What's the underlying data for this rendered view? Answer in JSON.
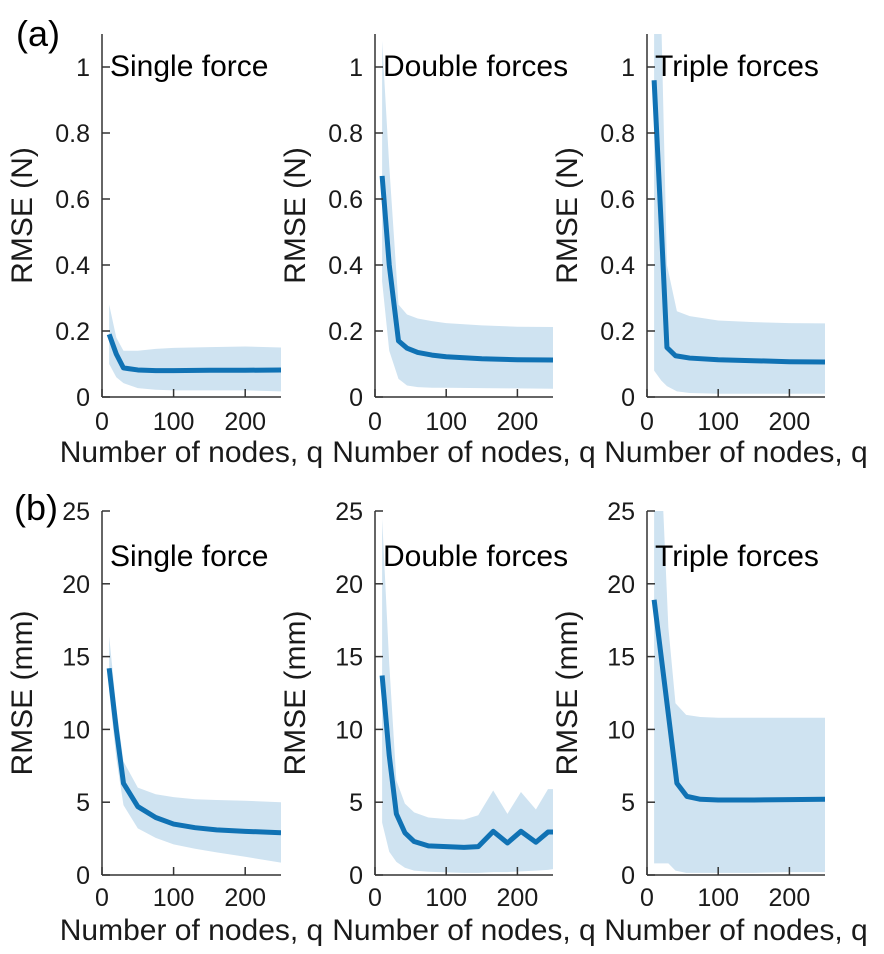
{
  "figure": {
    "panels": [
      {
        "label": "(a)"
      },
      {
        "label": "(b)"
      }
    ],
    "colors": {
      "line": "#1072b4",
      "band": "#cfe3f1",
      "axis": "#333333",
      "text": "#1a1a1a"
    }
  },
  "chart_data": [
    {
      "id": "a-single-force",
      "type": "line",
      "panel": "a",
      "title": "Single force",
      "xlabel": "Number of nodes, q",
      "ylabel": "RMSE (N)",
      "xlim": [
        0,
        250
      ],
      "ylim": [
        0,
        1.1
      ],
      "xticks": [
        0,
        100,
        200
      ],
      "yticks": [
        0,
        0.2,
        0.4,
        0.6,
        0.8,
        1
      ],
      "grid": false,
      "legend": null,
      "series": [
        {
          "name": "mean RMSE",
          "x": [
            10,
            20,
            30,
            50,
            75,
            100,
            150,
            200,
            250
          ],
          "y": [
            0.19,
            0.13,
            0.088,
            0.082,
            0.08,
            0.08,
            0.081,
            0.081,
            0.082
          ]
        }
      ],
      "band": {
        "name": "uncertainty band",
        "x": [
          10,
          20,
          30,
          50,
          75,
          100,
          150,
          200,
          250
        ],
        "upper": [
          0.28,
          0.18,
          0.14,
          0.14,
          0.146,
          0.149,
          0.151,
          0.153,
          0.15
        ],
        "lower": [
          0.1,
          0.06,
          0.042,
          0.027,
          0.022,
          0.02,
          0.02,
          0.02,
          0.017
        ]
      }
    },
    {
      "id": "a-double-forces",
      "type": "line",
      "panel": "a",
      "title": "Double forces",
      "xlabel": "Number of nodes, q",
      "ylabel": "RMSE (N)",
      "xlim": [
        0,
        250
      ],
      "ylim": [
        0,
        1.1
      ],
      "xticks": [
        0,
        100,
        200
      ],
      "yticks": [
        0,
        0.2,
        0.4,
        0.6,
        0.8,
        1
      ],
      "grid": false,
      "legend": null,
      "series": [
        {
          "name": "mean RMSE",
          "x": [
            10,
            20,
            33,
            45,
            60,
            80,
            100,
            150,
            200,
            250
          ],
          "y": [
            0.67,
            0.4,
            0.17,
            0.148,
            0.135,
            0.127,
            0.122,
            0.116,
            0.113,
            0.112
          ]
        }
      ],
      "band": {
        "name": "uncertainty band",
        "x": [
          10,
          20,
          33,
          45,
          60,
          80,
          100,
          150,
          200,
          250
        ],
        "upper": [
          1.08,
          0.7,
          0.28,
          0.25,
          0.238,
          0.23,
          0.224,
          0.217,
          0.213,
          0.212
        ],
        "lower": [
          0.35,
          0.14,
          0.055,
          0.035,
          0.03,
          0.028,
          0.028,
          0.027,
          0.026,
          0.025
        ]
      }
    },
    {
      "id": "a-triple-forces",
      "type": "line",
      "panel": "a",
      "title": "Triple forces",
      "xlabel": "Number of nodes, q",
      "ylabel": "RMSE (N)",
      "xlim": [
        0,
        250
      ],
      "ylim": [
        0,
        1.1
      ],
      "xticks": [
        0,
        100,
        200
      ],
      "yticks": [
        0,
        0.2,
        0.4,
        0.6,
        0.8,
        1
      ],
      "grid": false,
      "legend": null,
      "series": [
        {
          "name": "mean RMSE",
          "x": [
            10,
            20,
            28,
            40,
            60,
            100,
            150,
            200,
            250
          ],
          "y": [
            0.96,
            0.52,
            0.15,
            0.125,
            0.118,
            0.113,
            0.11,
            0.107,
            0.106
          ]
        }
      ],
      "band": {
        "name": "uncertainty band",
        "x": [
          10,
          20,
          28,
          42,
          60,
          100,
          150,
          200,
          250
        ],
        "upper": [
          1.15,
          1.15,
          0.4,
          0.26,
          0.245,
          0.232,
          0.227,
          0.224,
          0.223
        ],
        "lower": [
          0.08,
          0.05,
          0.033,
          0.017,
          0.012,
          0.01,
          0.01,
          0.01,
          0.01
        ]
      }
    },
    {
      "id": "b-single-force",
      "type": "line",
      "panel": "b",
      "title": "Single force",
      "xlabel": "Number of nodes, q",
      "ylabel": "RMSE (mm)",
      "xlim": [
        0,
        250
      ],
      "ylim": [
        0,
        25
      ],
      "xticks": [
        0,
        100,
        200
      ],
      "yticks": [
        0,
        5,
        10,
        15,
        20,
        25
      ],
      "grid": false,
      "legend": null,
      "series": [
        {
          "name": "mean RMSE",
          "x": [
            10,
            20,
            30,
            50,
            75,
            100,
            130,
            160,
            200,
            250
          ],
          "y": [
            14.2,
            10.0,
            6.3,
            4.7,
            3.95,
            3.5,
            3.25,
            3.1,
            3.0,
            2.9
          ]
        }
      ],
      "band": {
        "name": "uncertainty band",
        "x": [
          10,
          20,
          30,
          50,
          75,
          100,
          130,
          160,
          200,
          250
        ],
        "upper": [
          16.4,
          11.5,
          7.8,
          6.0,
          5.55,
          5.35,
          5.2,
          5.15,
          5.1,
          5.0
        ],
        "lower": [
          12.6,
          8.0,
          4.8,
          3.2,
          2.55,
          2.1,
          1.8,
          1.55,
          1.25,
          0.85
        ]
      }
    },
    {
      "id": "b-double-forces",
      "type": "line",
      "panel": "b",
      "title": "Double forces",
      "xlabel": "Number of nodes, q",
      "ylabel": "RMSE (mm)",
      "xlim": [
        0,
        250
      ],
      "ylim": [
        0,
        25
      ],
      "xticks": [
        0,
        100,
        200
      ],
      "yticks": [
        0,
        5,
        10,
        15,
        20,
        25
      ],
      "grid": false,
      "legend": null,
      "series": [
        {
          "name": "mean RMSE",
          "x": [
            10,
            20,
            30,
            42,
            55,
            75,
            100,
            125,
            145,
            166,
            186,
            205,
            226,
            243,
            250
          ],
          "y": [
            13.7,
            8.2,
            4.2,
            2.9,
            2.3,
            2.0,
            1.95,
            1.9,
            1.95,
            3.0,
            2.2,
            3.0,
            2.25,
            2.95,
            2.95
          ]
        }
      ],
      "band": {
        "name": "uncertainty band",
        "x": [
          10,
          20,
          30,
          42,
          55,
          75,
          100,
          125,
          145,
          166,
          186,
          205,
          226,
          243,
          250
        ],
        "upper": [
          24.5,
          14.5,
          6.5,
          4.9,
          4.3,
          3.95,
          3.85,
          3.8,
          4.1,
          5.8,
          4.2,
          5.7,
          4.5,
          5.9,
          5.9
        ],
        "lower": [
          3.6,
          1.6,
          0.9,
          0.5,
          0.3,
          0.22,
          0.18,
          0.15,
          0.15,
          0.2,
          0.2,
          0.25,
          0.3,
          0.35,
          0.4
        ]
      }
    },
    {
      "id": "b-triple-forces",
      "type": "line",
      "panel": "b",
      "title": "Triple forces",
      "xlabel": "Number of nodes, q",
      "ylabel": "RMSE (mm)",
      "xlim": [
        0,
        250
      ],
      "ylim": [
        0,
        25
      ],
      "xticks": [
        0,
        100,
        200
      ],
      "yticks": [
        0,
        5,
        10,
        15,
        20,
        25
      ],
      "grid": false,
      "legend": null,
      "series": [
        {
          "name": "mean RMSE",
          "x": [
            10,
            25,
            42,
            56,
            75,
            100,
            150,
            200,
            250
          ],
          "y": [
            18.9,
            13.0,
            6.3,
            5.4,
            5.2,
            5.15,
            5.15,
            5.18,
            5.2
          ]
        }
      ],
      "band": {
        "name": "uncertainty band",
        "x": [
          10,
          22,
          30,
          40,
          55,
          75,
          100,
          150,
          200,
          250
        ],
        "upper": [
          26,
          26,
          17,
          11.8,
          11.0,
          10.85,
          10.8,
          10.8,
          10.8,
          10.8
        ],
        "lower": [
          0.8,
          0.8,
          0.8,
          0.3,
          0.15,
          0.15,
          0.15,
          0.15,
          0.2,
          0.2
        ]
      }
    }
  ]
}
